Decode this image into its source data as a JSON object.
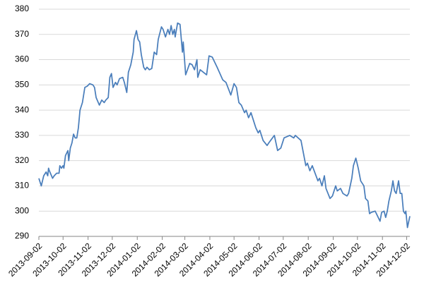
{
  "chart_data": {
    "type": "line",
    "x": [
      "2013-09-02",
      "2013-09-05",
      "2013-09-08",
      "2013-09-11",
      "2013-09-13",
      "2013-09-14",
      "2013-09-15",
      "2013-09-19",
      "2013-09-21",
      "2013-09-24",
      "2013-09-27",
      "2013-09-28",
      "2013-09-30",
      "2013-10-02",
      "2013-10-03",
      "2013-10-05",
      "2013-10-08",
      "2013-10-09",
      "2013-10-11",
      "2013-10-13",
      "2013-10-15",
      "2013-10-17",
      "2013-10-19",
      "2013-10-21",
      "2013-10-23",
      "2013-10-26",
      "2013-10-29",
      "2013-11-01",
      "2013-11-04",
      "2013-11-08",
      "2013-11-10",
      "2013-11-12",
      "2013-11-16",
      "2013-11-19",
      "2013-11-22",
      "2013-11-24",
      "2013-11-27",
      "2013-11-29",
      "2013-12-01",
      "2013-12-03",
      "2013-12-06",
      "2013-12-08",
      "2013-12-11",
      "2013-12-15",
      "2013-12-17",
      "2013-12-20",
      "2013-12-22",
      "2013-12-25",
      "2013-12-28",
      "2013-12-29",
      "2014-01-01",
      "2014-01-03",
      "2014-01-05",
      "2014-01-07",
      "2014-01-10",
      "2014-01-12",
      "2014-01-14",
      "2014-01-17",
      "2014-01-20",
      "2014-01-23",
      "2014-01-26",
      "2014-01-28",
      "2014-02-01",
      "2014-02-03",
      "2014-02-06",
      "2014-02-09",
      "2014-02-11",
      "2014-02-13",
      "2014-02-15",
      "2014-02-17",
      "2014-02-18",
      "2014-02-21",
      "2014-02-24",
      "2014-02-27",
      "2014-02-28",
      "2014-03-03",
      "2014-03-08",
      "2014-03-11",
      "2014-03-14",
      "2014-03-17",
      "2014-03-18",
      "2014-03-21",
      "2014-03-25",
      "2014-03-29",
      "2014-04-01",
      "2014-04-05",
      "2014-04-11",
      "2014-04-18",
      "2014-04-22",
      "2014-04-28",
      "2014-05-02",
      "2014-05-05",
      "2014-05-08",
      "2014-05-11",
      "2014-05-15",
      "2014-05-17",
      "2014-05-20",
      "2014-05-23",
      "2014-05-29",
      "2014-06-01",
      "2014-06-03",
      "2014-06-07",
      "2014-06-12",
      "2014-06-14",
      "2014-06-21",
      "2014-06-25",
      "2014-06-29",
      "2014-07-03",
      "2014-07-10",
      "2014-07-15",
      "2014-07-17",
      "2014-07-24",
      "2014-07-30",
      "2014-08-01",
      "2014-08-04",
      "2014-08-07",
      "2014-08-14",
      "2014-08-16",
      "2014-08-19",
      "2014-08-22",
      "2014-08-24",
      "2014-08-29",
      "2014-09-01",
      "2014-09-05",
      "2014-09-07",
      "2014-09-11",
      "2014-09-14",
      "2014-09-19",
      "2014-09-21",
      "2014-09-25",
      "2014-09-27",
      "2014-09-30",
      "2014-10-03",
      "2014-10-06",
      "2014-10-10",
      "2014-10-12",
      "2014-10-15",
      "2014-10-17",
      "2014-10-19",
      "2014-10-24",
      "2014-10-27",
      "2014-10-30",
      "2014-11-01",
      "2014-11-04",
      "2014-11-06",
      "2014-11-08",
      "2014-11-10",
      "2014-11-13",
      "2014-11-15",
      "2014-11-17",
      "2014-11-19",
      "2014-11-22",
      "2014-11-24",
      "2014-11-26",
      "2014-11-28",
      "2014-11-30",
      "2014-12-01",
      "2014-12-03",
      "2014-12-06"
    ],
    "series": [
      {
        "color": "#4a7ebb",
        "values": [
          313,
          310,
          314,
          315.5,
          314,
          317,
          316,
          313,
          314,
          315,
          315,
          318,
          317,
          318,
          317,
          322,
          324,
          320,
          325,
          327,
          330.5,
          329,
          329,
          333,
          340,
          343,
          349,
          349.5,
          350.5,
          350,
          349,
          345,
          342,
          344,
          343,
          344,
          345,
          353,
          354.5,
          349,
          351,
          350,
          352.5,
          353,
          351,
          347,
          355,
          358,
          363,
          368,
          371.5,
          368,
          367,
          362,
          357,
          356,
          357,
          356,
          356.5,
          363,
          362,
          368,
          373,
          372,
          369,
          372,
          370,
          373.5,
          370,
          372,
          369,
          374.5,
          374,
          363,
          367,
          354,
          358.5,
          358,
          356,
          360,
          353,
          356,
          355,
          354,
          361.5,
          361,
          357,
          352,
          351,
          346,
          350.5,
          349,
          343,
          342,
          339,
          340,
          337,
          339,
          333,
          331,
          332,
          328,
          326,
          327,
          330,
          324,
          325,
          329,
          330,
          329,
          330,
          328,
          318,
          319,
          316,
          318,
          312,
          313,
          310,
          314,
          309,
          305,
          306,
          310,
          308,
          309,
          307,
          306,
          307,
          313,
          318,
          321,
          317,
          312,
          310,
          305,
          304,
          299,
          299.5,
          300,
          298,
          296,
          299.5,
          300,
          297.5,
          300,
          304,
          308,
          312,
          308,
          307,
          312,
          307,
          307,
          300,
          299,
          300,
          293.5,
          298
        ]
      }
    ],
    "xlim": [
      "2013-09-02",
      "2014-12-06"
    ],
    "xticks": [
      "2013-09-02",
      "2013-10-02",
      "2013-11-02",
      "2013-12-02",
      "2014-01-02",
      "2014-02-02",
      "2014-03-02",
      "2014-04-02",
      "2014-05-02",
      "2014-06-02",
      "2014-07-02",
      "2014-08-02",
      "2014-09-02",
      "2014-10-02",
      "2014-11-02",
      "2014-12-02"
    ],
    "ylim": [
      290,
      380
    ],
    "yticks": [
      290,
      300,
      310,
      320,
      330,
      340,
      350,
      360,
      370,
      380
    ],
    "grid": true
  }
}
